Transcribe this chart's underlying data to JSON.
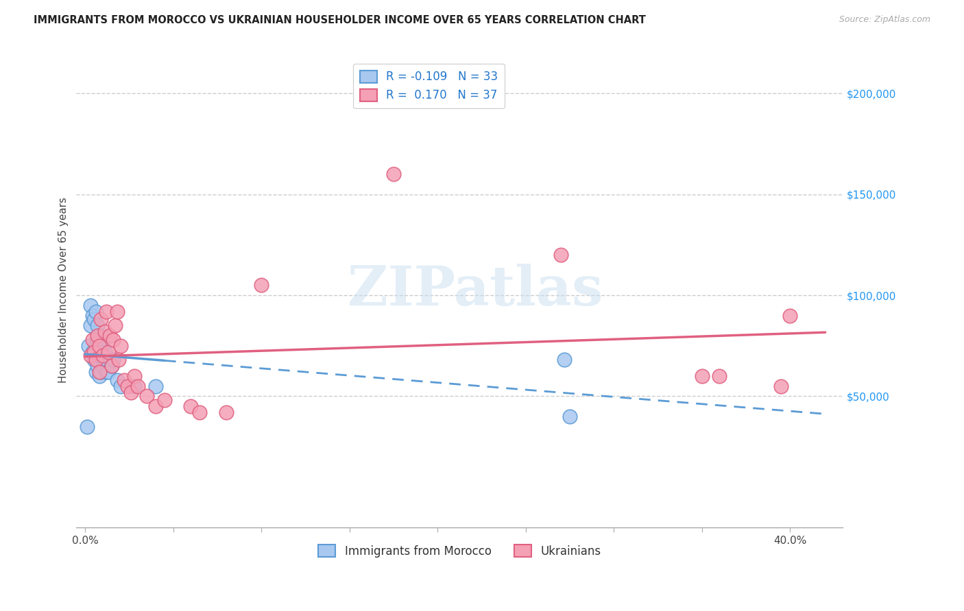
{
  "title": "IMMIGRANTS FROM MOROCCO VS UKRAINIAN HOUSEHOLDER INCOME OVER 65 YEARS CORRELATION CHART",
  "source": "Source: ZipAtlas.com",
  "ylabel": "Householder Income Over 65 years",
  "watermark": "ZIPatlas",
  "legend_label1": "Immigrants from Morocco",
  "legend_label2": "Ukrainians",
  "yticks": [
    0,
    50000,
    100000,
    150000,
    200000
  ],
  "ytick_labels": [
    "",
    "$50,000",
    "$100,000",
    "$150,000",
    "$200,000"
  ],
  "xticks": [
    0.0,
    0.05,
    0.1,
    0.15,
    0.2,
    0.25,
    0.3,
    0.35,
    0.4
  ],
  "xlim": [
    -0.005,
    0.43
  ],
  "ylim": [
    -15000,
    220000
  ],
  "color_morocco": "#A8C8F0",
  "color_ukraine": "#F4A0B5",
  "color_morocco_line": "#5B9BD5",
  "color_ukraine_line": "#E06080",
  "morocco_x": [
    0.001,
    0.002,
    0.003,
    0.003,
    0.004,
    0.004,
    0.005,
    0.005,
    0.006,
    0.006,
    0.006,
    0.007,
    0.007,
    0.007,
    0.008,
    0.008,
    0.008,
    0.009,
    0.009,
    0.01,
    0.01,
    0.011,
    0.011,
    0.012,
    0.013,
    0.015,
    0.016,
    0.018,
    0.02,
    0.028,
    0.04,
    0.272,
    0.275
  ],
  "morocco_y": [
    35000,
    75000,
    85000,
    95000,
    90000,
    72000,
    88000,
    68000,
    92000,
    75000,
    62000,
    85000,
    78000,
    65000,
    80000,
    72000,
    60000,
    70000,
    62000,
    75000,
    65000,
    72000,
    68000,
    62000,
    62000,
    65000,
    68000,
    58000,
    55000,
    55000,
    55000,
    68000,
    40000
  ],
  "ukraine_x": [
    0.003,
    0.004,
    0.005,
    0.006,
    0.007,
    0.008,
    0.008,
    0.009,
    0.01,
    0.011,
    0.012,
    0.013,
    0.014,
    0.015,
    0.016,
    0.017,
    0.018,
    0.019,
    0.02,
    0.022,
    0.024,
    0.026,
    0.028,
    0.03,
    0.035,
    0.04,
    0.045,
    0.06,
    0.065,
    0.08,
    0.1,
    0.175,
    0.27,
    0.35,
    0.36,
    0.395,
    0.4
  ],
  "ukraine_y": [
    70000,
    78000,
    72000,
    68000,
    80000,
    75000,
    62000,
    88000,
    70000,
    82000,
    92000,
    72000,
    80000,
    65000,
    78000,
    85000,
    92000,
    68000,
    75000,
    58000,
    55000,
    52000,
    60000,
    55000,
    50000,
    45000,
    48000,
    45000,
    42000,
    42000,
    105000,
    160000,
    120000,
    60000,
    60000,
    55000,
    90000
  ]
}
